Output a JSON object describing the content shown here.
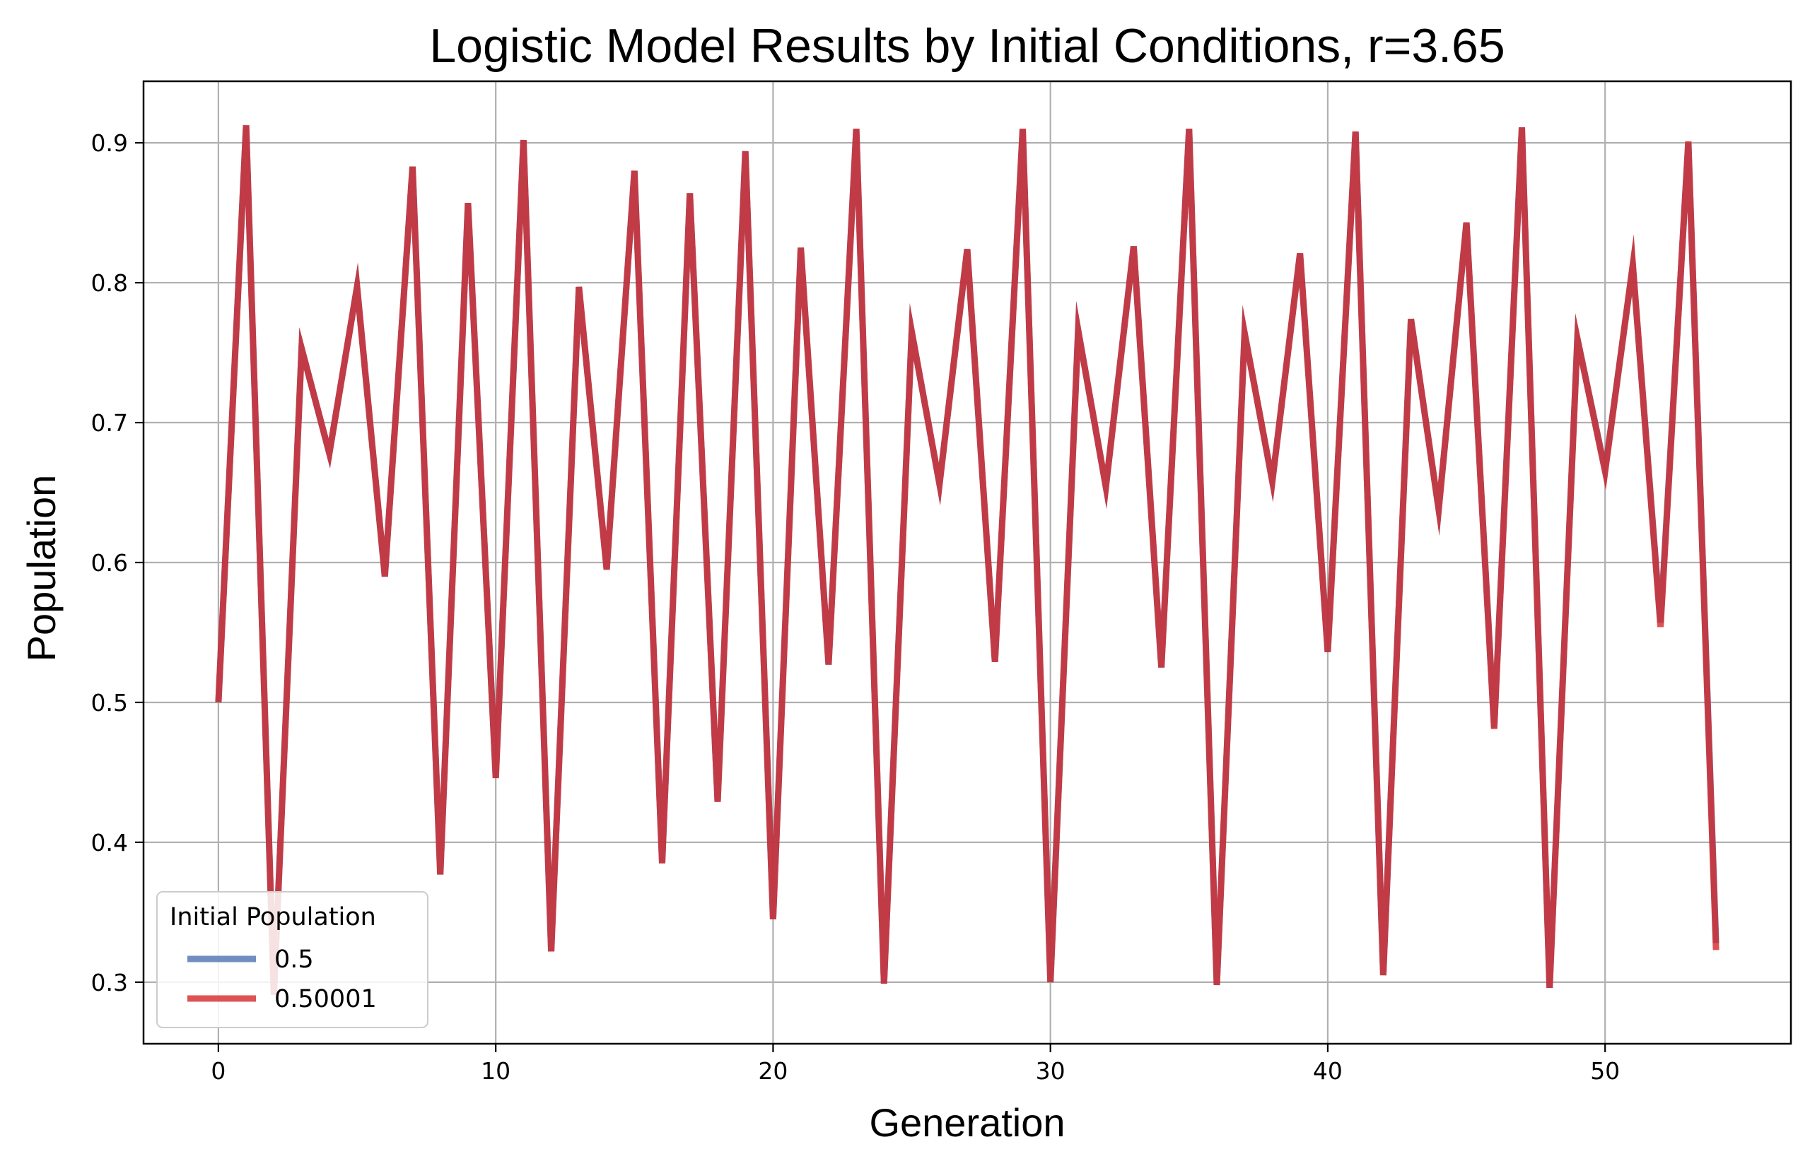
{
  "chart_data": {
    "type": "line",
    "title": "Logistic Model Results by Initial Conditions, r=3.65",
    "xlabel": "Generation",
    "ylabel": "Population",
    "xlim": [
      -2.7,
      56.7
    ],
    "ylim": [
      0.256,
      0.944
    ],
    "xticks": [
      0,
      10,
      20,
      30,
      40,
      50
    ],
    "yticks": [
      0.3,
      0.4,
      0.5,
      0.6,
      0.7,
      0.8,
      0.9
    ],
    "grid": true,
    "legend": {
      "title": "Initial Population",
      "placement": "lower-left"
    },
    "x": [
      0,
      1,
      2,
      3,
      4,
      5,
      6,
      7,
      8,
      9,
      10,
      11,
      12,
      13,
      14,
      15,
      16,
      17,
      18,
      19,
      20,
      21,
      22,
      23,
      24,
      25,
      26,
      27,
      28,
      29,
      30,
      31,
      32,
      33,
      34,
      35,
      36,
      37,
      38,
      39,
      40,
      41,
      42,
      43,
      44,
      45,
      46,
      47,
      48,
      49,
      50,
      51,
      52,
      53,
      54
    ],
    "series": [
      {
        "name": "0.5",
        "color": "#4c72b0",
        "values": [
          0.5,
          0.9125,
          0.291,
          0.753,
          0.678,
          0.797,
          0.59,
          0.883,
          0.377,
          0.857,
          0.446,
          0.902,
          0.322,
          0.797,
          0.595,
          0.88,
          0.385,
          0.864,
          0.429,
          0.894,
          0.345,
          0.825,
          0.527,
          0.91,
          0.299,
          0.765,
          0.656,
          0.824,
          0.529,
          0.91,
          0.3,
          0.766,
          0.654,
          0.826,
          0.525,
          0.91,
          0.298,
          0.764,
          0.658,
          0.821,
          0.536,
          0.908,
          0.305,
          0.774,
          0.638,
          0.843,
          0.482,
          0.911,
          0.296,
          0.76,
          0.666,
          0.812,
          0.557,
          0.9,
          0.328
        ]
      },
      {
        "name": "0.50001",
        "color": "#d62728",
        "values": [
          0.50001,
          0.9125,
          0.291,
          0.753,
          0.678,
          0.797,
          0.59,
          0.883,
          0.377,
          0.857,
          0.446,
          0.902,
          0.322,
          0.797,
          0.595,
          0.88,
          0.385,
          0.864,
          0.429,
          0.894,
          0.345,
          0.825,
          0.527,
          0.91,
          0.299,
          0.765,
          0.656,
          0.824,
          0.529,
          0.91,
          0.3,
          0.766,
          0.654,
          0.826,
          0.525,
          0.91,
          0.298,
          0.764,
          0.658,
          0.821,
          0.536,
          0.908,
          0.305,
          0.774,
          0.638,
          0.843,
          0.481,
          0.911,
          0.296,
          0.76,
          0.665,
          0.813,
          0.554,
          0.901,
          0.323
        ]
      }
    ]
  }
}
